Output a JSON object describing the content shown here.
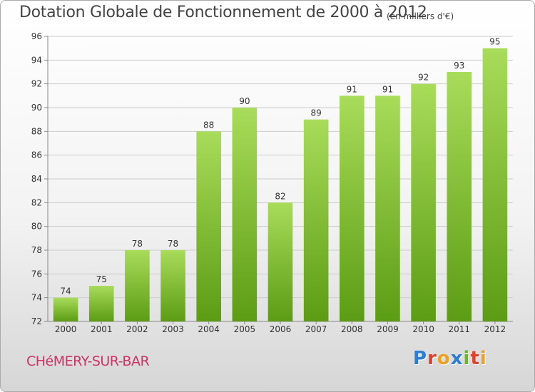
{
  "chart_data": {
    "type": "bar",
    "title": "Dotation Globale de Fonctionnement de 2000 à 2012",
    "subtitle": "(en milliers d'€)",
    "categories": [
      "2000",
      "2001",
      "2002",
      "2003",
      "2004",
      "2005",
      "2006",
      "2007",
      "2008",
      "2009",
      "2010",
      "2011",
      "2012"
    ],
    "values": [
      74,
      75,
      78,
      78,
      88,
      90,
      82,
      89,
      91,
      91,
      92,
      93,
      95
    ],
    "ylim": [
      72,
      96
    ],
    "yticks": [
      72,
      74,
      76,
      78,
      80,
      82,
      84,
      86,
      88,
      90,
      92,
      94,
      96
    ],
    "grid": true,
    "colors": {
      "bar_light": "#a8dc5a",
      "bar_dark": "#5c9c14",
      "grid": "#cccccc"
    }
  },
  "footer": {
    "commune": "CHéMERY-SUR-BAR",
    "brand_letters": [
      {
        "char": "P",
        "color": "#2a7fd4"
      },
      {
        "char": "r",
        "color": "#e0402c"
      },
      {
        "char": "o",
        "color": "#f0a020"
      },
      {
        "char": "x",
        "color": "#2a7fd4"
      },
      {
        "char": "i",
        "color": "#6cb42c"
      },
      {
        "char": "t",
        "color": "#e0402c"
      },
      {
        "char": "i",
        "color": "#f0a020"
      }
    ]
  }
}
